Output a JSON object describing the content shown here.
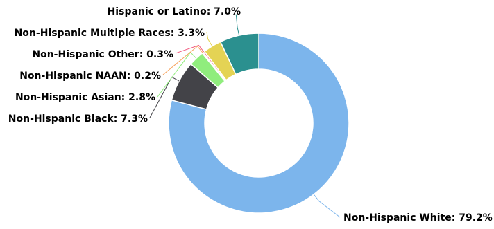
{
  "chart_data": {
    "type": "pie",
    "style": "donut",
    "title": "",
    "start_angle_deg": 0,
    "direction": "clockwise",
    "label_format": "{name}: {value}%",
    "slices": [
      {
        "name": "Non-Hispanic White",
        "value": 79.2,
        "color": "#7cb5ec"
      },
      {
        "name": "Non-Hispanic Black",
        "value": 7.3,
        "color": "#434348"
      },
      {
        "name": "Non-Hispanic Asian",
        "value": 2.8,
        "color": "#90ed7d"
      },
      {
        "name": "Non-Hispanic NAAN",
        "value": 0.2,
        "color": "#f7a35c"
      },
      {
        "name": "Non-Hispanic Other",
        "value": 0.3,
        "color": "#f15c80"
      },
      {
        "name": "Non-Hispanic Multiple Races",
        "value": 3.3,
        "color": "#e4d354"
      },
      {
        "name": "Hispanic or Latino",
        "value": 7.0,
        "color": "#2b908f"
      }
    ],
    "labels": [
      "Non-Hispanic White: 79.2%",
      "Non-Hispanic Black: 7.3%",
      "Non-Hispanic Asian: 2.8%",
      "Non-Hispanic NAAN: 0.2%",
      "Non-Hispanic Other: 0.3%",
      "Non-Hispanic Multiple Races: 3.3%",
      "Hispanic or Latino: 7.0%"
    ]
  }
}
